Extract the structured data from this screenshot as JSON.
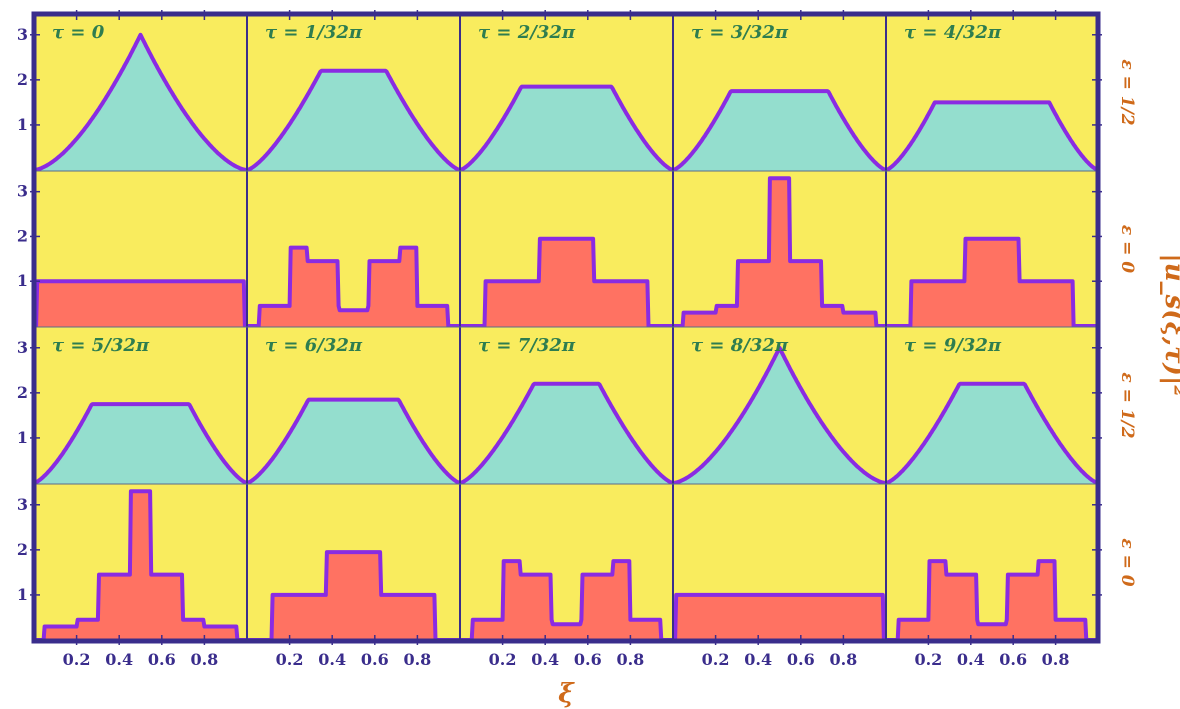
{
  "chart_data": {
    "type": "area",
    "layout": "grid of 4 rows by 5 columns",
    "x_label": "ξ",
    "y_label": "|u_s(ξ,τ)|²",
    "x_ticks": [
      "0.2",
      "0.4",
      "0.6",
      "0.8"
    ],
    "y_ticks": [
      "1",
      "2",
      "3"
    ],
    "xlim": [
      0,
      1
    ],
    "ylim": [
      0,
      3.35
    ],
    "rows": [
      {
        "eps_label": "ε = 1/2",
        "kind": "smooth",
        "fill": "#94dece",
        "titles": [
          "τ = 0",
          "τ = 1/32π",
          "τ = 2/32π",
          "τ = 3/32π",
          "τ = 4/32π"
        ],
        "peaks": [
          3.0,
          2.2,
          1.85,
          1.75,
          1.5
        ]
      },
      {
        "eps_label": "ε = 0",
        "kind": "steps",
        "fill": "#ff7262",
        "titles": [
          "",
          "",
          "",
          "",
          ""
        ],
        "peaks": [
          1.0,
          1.75,
          1.95,
          3.3,
          1.95
        ]
      },
      {
        "eps_label": "ε = 1/2",
        "kind": "smooth",
        "fill": "#94dece",
        "titles": [
          "τ = 5/32π",
          "τ = 6/32π",
          "τ = 7/32π",
          "τ = 8/32π",
          "τ = 9/32π"
        ],
        "peaks": [
          1.75,
          1.85,
          2.2,
          3.0,
          2.2
        ]
      },
      {
        "eps_label": "ε = 0",
        "kind": "steps",
        "fill": "#ff7262",
        "titles": [
          "",
          "",
          "",
          "",
          ""
        ],
        "peaks": [
          3.3,
          1.95,
          1.75,
          1.0,
          1.75
        ]
      }
    ],
    "curve_color": "#8a2be2",
    "panel_bg": "#f9ec5e",
    "frame_color": "#3a2d8c"
  }
}
